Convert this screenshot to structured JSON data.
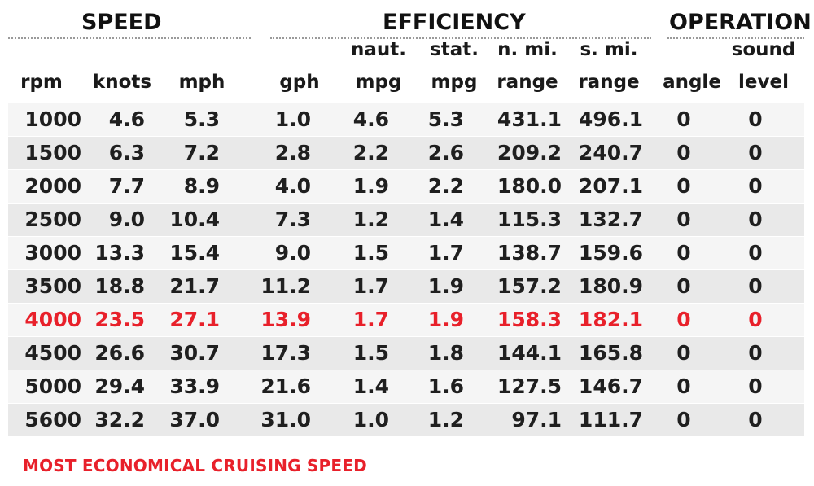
{
  "sections": {
    "speed": "SPEED",
    "efficiency": "EFFICIENCY",
    "operation": "OPERATION"
  },
  "headers_top": {
    "naut": "naut.",
    "stat": "stat.",
    "nmi": "n. mi.",
    "smi": "s. mi.",
    "sound": "sound"
  },
  "headers": {
    "rpm": "rpm",
    "knots": "knots",
    "mph": "mph",
    "gph": "gph",
    "naut_mpg": "mpg",
    "stat_mpg": "mpg",
    "nmi_range": "range",
    "smi_range": "range",
    "angle": "angle",
    "sound_level": "level"
  },
  "rows": [
    [
      "1000",
      "4.6",
      "5.3",
      "1.0",
      "4.6",
      "5.3",
      "431.1",
      "496.1",
      "0",
      "0"
    ],
    [
      "1500",
      "6.3",
      "7.2",
      "2.8",
      "2.2",
      "2.6",
      "209.2",
      "240.7",
      "0",
      "0"
    ],
    [
      "2000",
      "7.7",
      "8.9",
      "4.0",
      "1.9",
      "2.2",
      "180.0",
      "207.1",
      "0",
      "0"
    ],
    [
      "2500",
      "9.0",
      "10.4",
      "7.3",
      "1.2",
      "1.4",
      "115.3",
      "132.7",
      "0",
      "0"
    ],
    [
      "3000",
      "13.3",
      "15.4",
      "9.0",
      "1.5",
      "1.7",
      "138.7",
      "159.6",
      "0",
      "0"
    ],
    [
      "3500",
      "18.8",
      "21.7",
      "11.2",
      "1.7",
      "1.9",
      "157.2",
      "180.9",
      "0",
      "0"
    ],
    [
      "4000",
      "23.5",
      "27.1",
      "13.9",
      "1.7",
      "1.9",
      "158.3",
      "182.1",
      "0",
      "0"
    ],
    [
      "4500",
      "26.6",
      "30.7",
      "17.3",
      "1.5",
      "1.8",
      "144.1",
      "165.8",
      "0",
      "0"
    ],
    [
      "5000",
      "29.4",
      "33.9",
      "21.6",
      "1.4",
      "1.6",
      "127.5",
      "146.7",
      "0",
      "0"
    ],
    [
      "5600",
      "32.2",
      "37.0",
      "31.0",
      "1.0",
      "1.2",
      "97.1",
      "111.7",
      "0",
      "0"
    ]
  ],
  "highlight_row": 6,
  "footnote": "MOST ECONOMICAL CRUISING SPEED",
  "colors": {
    "highlight": "#e8202a",
    "row_shade": "#e9e9e9",
    "row_light": "#f5f5f5",
    "text": "#1a1a1a"
  }
}
